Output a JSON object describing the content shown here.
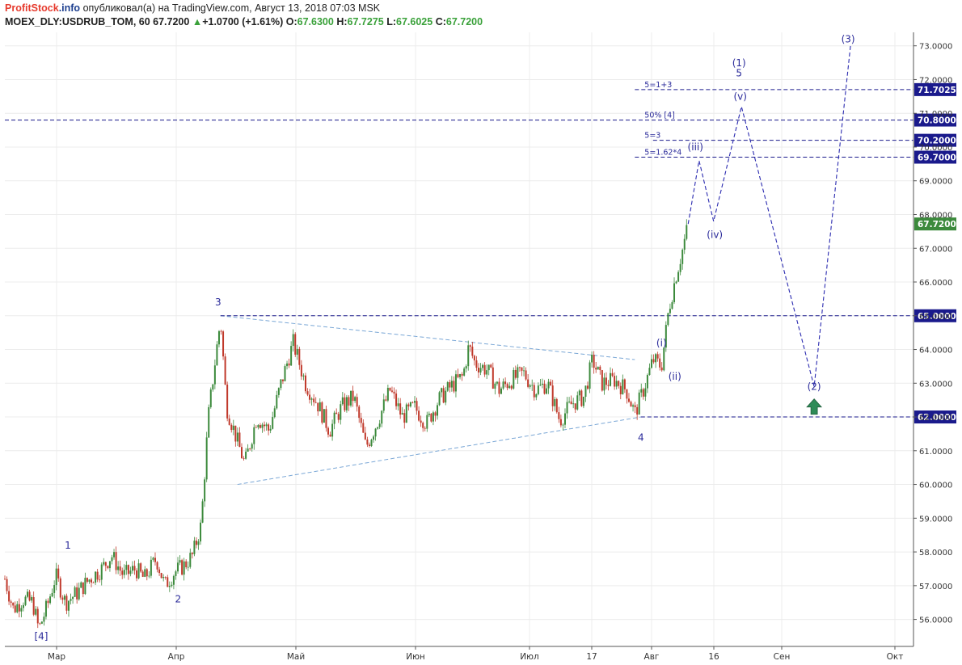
{
  "header": {
    "brand_part1": "ProfitStock",
    "brand_part2": ".info",
    "published_text": "опубликовал(а) на TradingView.com, Август 13, 2018 07:03 MSK",
    "symbol": "MOEX_DLY:USDRUB_TOM, 60",
    "last": "67.7200",
    "change": "+1.0700 (+1.61%)",
    "ohlc": {
      "o_label": "O:",
      "o": "67.6300",
      "h_label": "H:",
      "h": "67.7275",
      "l_label": "L:",
      "l": "67.6025",
      "c_label": "C:",
      "c": "67.7200"
    }
  },
  "colors": {
    "up": "#3c8a3c",
    "down": "#c0392b",
    "level_line": "#1a1a8c",
    "triangle_line": "#7aa7d6",
    "projection": "#2b2bb0",
    "label": "#2a2a9a",
    "arrow": "#2e8b57"
  },
  "chart_data": {
    "type": "candlestick",
    "instrument": "USDRUB_TOM",
    "timeframe": "60",
    "ylim": [
      55.2,
      73.4
    ],
    "x_axis_ticks": [
      "Мар",
      "Апр",
      "Май",
      "Июн",
      "Июл",
      "17",
      "Авг",
      "16",
      "Сен",
      "Окт"
    ],
    "y_axis_ticks": [
      "56.0000",
      "57.0000",
      "58.0000",
      "59.0000",
      "60.0000",
      "61.0000",
      "62.0000",
      "63.0000",
      "64.0000",
      "65.0000",
      "66.0000",
      "67.0000",
      "68.0000",
      "69.0000",
      "70.0000",
      "71.0000",
      "72.0000",
      "73.0000"
    ],
    "price_path": [
      [
        0,
        57.2
      ],
      [
        0.7,
        56.3
      ],
      [
        1.5,
        56.6
      ],
      [
        2.3,
        56.5
      ],
      [
        2.8,
        55.7
      ],
      [
        3.5,
        56.4
      ],
      [
        4.2,
        57.3
      ],
      [
        5.0,
        56.5
      ],
      [
        6.0,
        56.8
      ],
      [
        7.0,
        57.2
      ],
      [
        8.0,
        57.5
      ],
      [
        8.8,
        57.9
      ],
      [
        9.8,
        57.3
      ],
      [
        10.8,
        57.5
      ],
      [
        11.5,
        57.2
      ],
      [
        12.5,
        57.8
      ],
      [
        13.2,
        57.0
      ],
      [
        14.0,
        57.4
      ],
      [
        14.8,
        57.6
      ],
      [
        15.5,
        57.9
      ],
      [
        16.2,
        58.8
      ],
      [
        16.8,
        62.0
      ],
      [
        17.3,
        63.5
      ],
      [
        17.8,
        64.9
      ],
      [
        18.3,
        62.3
      ],
      [
        19.0,
        61.5
      ],
      [
        19.8,
        60.6
      ],
      [
        20.8,
        62.0
      ],
      [
        21.8,
        61.6
      ],
      [
        22.8,
        63.0
      ],
      [
        23.8,
        64.2
      ],
      [
        24.8,
        63.0
      ],
      [
        25.8,
        62.4
      ],
      [
        26.8,
        61.6
      ],
      [
        27.8,
        62.3
      ],
      [
        28.8,
        62.6
      ],
      [
        29.8,
        61.1
      ],
      [
        30.8,
        61.9
      ],
      [
        31.8,
        62.8
      ],
      [
        32.8,
        62.0
      ],
      [
        33.8,
        62.3
      ],
      [
        34.8,
        61.8
      ],
      [
        35.8,
        62.5
      ],
      [
        36.8,
        62.9
      ],
      [
        37.8,
        63.2
      ],
      [
        38.3,
        64.1
      ],
      [
        38.8,
        63.6
      ],
      [
        39.8,
        63.4
      ],
      [
        40.8,
        62.8
      ],
      [
        41.8,
        63.1
      ],
      [
        42.8,
        63.3
      ],
      [
        43.8,
        62.8
      ],
      [
        44.8,
        63.0
      ],
      [
        45.8,
        61.9
      ],
      [
        46.8,
        62.4
      ],
      [
        47.8,
        62.6
      ],
      [
        48.5,
        63.7
      ],
      [
        49.3,
        63.0
      ],
      [
        50.3,
        63.1
      ],
      [
        51.3,
        62.8
      ],
      [
        52.0,
        62.1
      ],
      [
        52.8,
        62.9
      ],
      [
        53.5,
        63.7
      ],
      [
        54.2,
        63.5
      ],
      [
        54.8,
        65.2
      ],
      [
        55.4,
        66.2
      ],
      [
        55.9,
        66.9
      ],
      [
        56.4,
        67.72
      ]
    ],
    "horizontal_levels": [
      {
        "value": 71.7025,
        "label": "71.7025",
        "note": "5=1+3",
        "from": 52.0
      },
      {
        "value": 70.8,
        "label": "70.8000",
        "note": "50% [4]",
        "from": 0
      },
      {
        "value": 70.2,
        "label": "70.2000",
        "note": "5=3",
        "from": 53.5
      },
      {
        "value": 69.7,
        "label": "69.7000",
        "note": "5=1.62*4",
        "from": 52.0
      },
      {
        "value": 65.0,
        "label": "65.0000",
        "note": "",
        "from": 17.8
      },
      {
        "value": 62.0,
        "label": "62.0000",
        "note": "",
        "from": 52.5
      }
    ],
    "last_price": {
      "value": 67.72,
      "label": "67.7200"
    },
    "triangle": {
      "upper": [
        [
          17.8,
          65.0
        ],
        [
          52.0,
          63.7
        ]
      ],
      "lower": [
        [
          19.2,
          60.0
        ],
        [
          52.5,
          62.0
        ]
      ]
    },
    "projection_path": [
      [
        56.4,
        67.72
      ],
      [
        57.3,
        69.6
      ],
      [
        58.5,
        67.8
      ],
      [
        60.8,
        71.2
      ],
      [
        66.8,
        62.9
      ],
      [
        69.8,
        73.0
      ]
    ],
    "wave_labels": [
      {
        "text": "[4]",
        "x": 3.0,
        "y": 55.4
      },
      {
        "text": "1",
        "x": 5.2,
        "y": 58.1
      },
      {
        "text": "2",
        "x": 14.3,
        "y": 56.5
      },
      {
        "text": "3",
        "x": 17.6,
        "y": 65.3
      },
      {
        "text": "4",
        "x": 52.5,
        "y": 61.3
      },
      {
        "text": "(i)",
        "x": 54.2,
        "y": 64.1
      },
      {
        "text": "(ii)",
        "x": 55.3,
        "y": 63.1
      },
      {
        "text": "(iii)",
        "x": 57.0,
        "y": 69.9
      },
      {
        "text": "(iv)",
        "x": 58.6,
        "y": 67.3
      },
      {
        "text": "(v)",
        "x": 60.7,
        "y": 71.4
      },
      {
        "text": "5",
        "x": 60.6,
        "y": 72.1
      },
      {
        "text": "(1)",
        "x": 60.6,
        "y": 72.4
      },
      {
        "text": "(2)",
        "x": 66.8,
        "y": 62.8
      },
      {
        "text": "(3)",
        "x": 69.6,
        "y": 73.1
      }
    ],
    "buy_arrow": {
      "x": 66.8,
      "y": 62.2
    }
  }
}
